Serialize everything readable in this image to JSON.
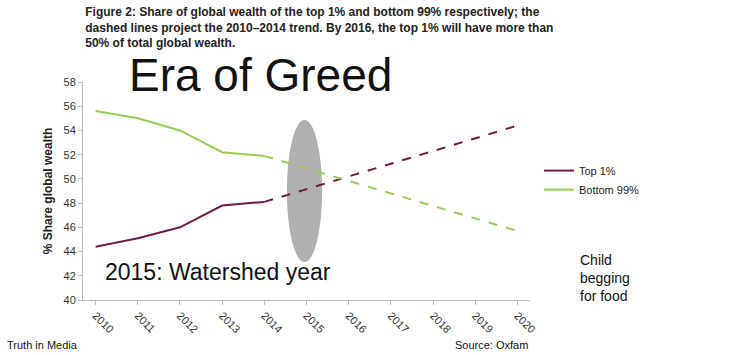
{
  "chart_data": {
    "type": "line",
    "title": "Figure 2: Share of global wealth of the top 1% and bottom 99% respectively; the dashed lines project the 2010–2014 trend. By 2016, the top 1% will have more than 50% of total global wealth.",
    "y_label": "% Share global wealth",
    "annotations": [
      "Era of Greed",
      "2015: Watershed year",
      "Child begging for food",
      "Truth in Media",
      "Source: Oxfam"
    ],
    "series": [
      {
        "name": "Top 1%",
        "color": "#6b1d45",
        "line_style": "solid",
        "x": [
          2010,
          2011,
          2012,
          2013,
          2014
        ],
        "values": [
          44.4,
          45.1,
          46.0,
          47.8,
          48.1
        ]
      },
      {
        "color": "#6b1d45",
        "line_style": "dashed",
        "x": [
          2014,
          2020
        ],
        "values": [
          48.1,
          54.4
        ]
      },
      {
        "name": "Bottom 99%",
        "color": "#9acb5a",
        "line_style": "solid",
        "x": [
          2010,
          2011,
          2012,
          2013,
          2014
        ],
        "values": [
          55.6,
          55.0,
          54.0,
          52.2,
          51.9
        ]
      },
      {
        "color": "#9acb5a",
        "line_style": "dashed",
        "x": [
          2014,
          2020
        ],
        "values": [
          51.9,
          45.7
        ]
      }
    ],
    "xlim": [
      2009.7,
      2020.3
    ],
    "xticks": [
      2010,
      2011,
      2012,
      2013,
      2014,
      2015,
      2016,
      2017,
      2018,
      2019,
      2020
    ],
    "ylim": [
      40,
      58
    ],
    "yticks": [
      40,
      42,
      44,
      46,
      48,
      50,
      52,
      54,
      56,
      58
    ],
    "grid": false,
    "legend": "right"
  }
}
